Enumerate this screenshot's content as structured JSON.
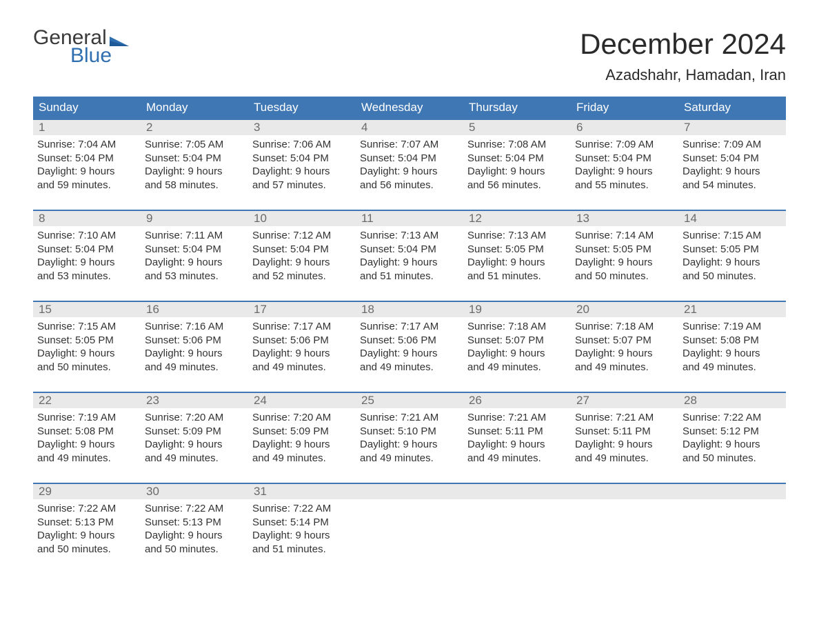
{
  "logo": {
    "part1": "General",
    "part2": "Blue"
  },
  "title": "December 2024",
  "location": "Azadshahr, Hamadan, Iran",
  "colors": {
    "header_bg": "#3f77b4",
    "header_text": "#ffffff",
    "band_bg": "#e9e9e9",
    "rule": "#3f77b4",
    "logo_blue": "#2f6fb0",
    "text": "#333333"
  },
  "day_headers": [
    "Sunday",
    "Monday",
    "Tuesday",
    "Wednesday",
    "Thursday",
    "Friday",
    "Saturday"
  ],
  "weeks": [
    [
      {
        "n": "1",
        "sr": "Sunrise: 7:04 AM",
        "ss": "Sunset: 5:04 PM",
        "d1": "Daylight: 9 hours",
        "d2": "and 59 minutes."
      },
      {
        "n": "2",
        "sr": "Sunrise: 7:05 AM",
        "ss": "Sunset: 5:04 PM",
        "d1": "Daylight: 9 hours",
        "d2": "and 58 minutes."
      },
      {
        "n": "3",
        "sr": "Sunrise: 7:06 AM",
        "ss": "Sunset: 5:04 PM",
        "d1": "Daylight: 9 hours",
        "d2": "and 57 minutes."
      },
      {
        "n": "4",
        "sr": "Sunrise: 7:07 AM",
        "ss": "Sunset: 5:04 PM",
        "d1": "Daylight: 9 hours",
        "d2": "and 56 minutes."
      },
      {
        "n": "5",
        "sr": "Sunrise: 7:08 AM",
        "ss": "Sunset: 5:04 PM",
        "d1": "Daylight: 9 hours",
        "d2": "and 56 minutes."
      },
      {
        "n": "6",
        "sr": "Sunrise: 7:09 AM",
        "ss": "Sunset: 5:04 PM",
        "d1": "Daylight: 9 hours",
        "d2": "and 55 minutes."
      },
      {
        "n": "7",
        "sr": "Sunrise: 7:09 AM",
        "ss": "Sunset: 5:04 PM",
        "d1": "Daylight: 9 hours",
        "d2": "and 54 minutes."
      }
    ],
    [
      {
        "n": "8",
        "sr": "Sunrise: 7:10 AM",
        "ss": "Sunset: 5:04 PM",
        "d1": "Daylight: 9 hours",
        "d2": "and 53 minutes."
      },
      {
        "n": "9",
        "sr": "Sunrise: 7:11 AM",
        "ss": "Sunset: 5:04 PM",
        "d1": "Daylight: 9 hours",
        "d2": "and 53 minutes."
      },
      {
        "n": "10",
        "sr": "Sunrise: 7:12 AM",
        "ss": "Sunset: 5:04 PM",
        "d1": "Daylight: 9 hours",
        "d2": "and 52 minutes."
      },
      {
        "n": "11",
        "sr": "Sunrise: 7:13 AM",
        "ss": "Sunset: 5:04 PM",
        "d1": "Daylight: 9 hours",
        "d2": "and 51 minutes."
      },
      {
        "n": "12",
        "sr": "Sunrise: 7:13 AM",
        "ss": "Sunset: 5:05 PM",
        "d1": "Daylight: 9 hours",
        "d2": "and 51 minutes."
      },
      {
        "n": "13",
        "sr": "Sunrise: 7:14 AM",
        "ss": "Sunset: 5:05 PM",
        "d1": "Daylight: 9 hours",
        "d2": "and 50 minutes."
      },
      {
        "n": "14",
        "sr": "Sunrise: 7:15 AM",
        "ss": "Sunset: 5:05 PM",
        "d1": "Daylight: 9 hours",
        "d2": "and 50 minutes."
      }
    ],
    [
      {
        "n": "15",
        "sr": "Sunrise: 7:15 AM",
        "ss": "Sunset: 5:05 PM",
        "d1": "Daylight: 9 hours",
        "d2": "and 50 minutes."
      },
      {
        "n": "16",
        "sr": "Sunrise: 7:16 AM",
        "ss": "Sunset: 5:06 PM",
        "d1": "Daylight: 9 hours",
        "d2": "and 49 minutes."
      },
      {
        "n": "17",
        "sr": "Sunrise: 7:17 AM",
        "ss": "Sunset: 5:06 PM",
        "d1": "Daylight: 9 hours",
        "d2": "and 49 minutes."
      },
      {
        "n": "18",
        "sr": "Sunrise: 7:17 AM",
        "ss": "Sunset: 5:06 PM",
        "d1": "Daylight: 9 hours",
        "d2": "and 49 minutes."
      },
      {
        "n": "19",
        "sr": "Sunrise: 7:18 AM",
        "ss": "Sunset: 5:07 PM",
        "d1": "Daylight: 9 hours",
        "d2": "and 49 minutes."
      },
      {
        "n": "20",
        "sr": "Sunrise: 7:18 AM",
        "ss": "Sunset: 5:07 PM",
        "d1": "Daylight: 9 hours",
        "d2": "and 49 minutes."
      },
      {
        "n": "21",
        "sr": "Sunrise: 7:19 AM",
        "ss": "Sunset: 5:08 PM",
        "d1": "Daylight: 9 hours",
        "d2": "and 49 minutes."
      }
    ],
    [
      {
        "n": "22",
        "sr": "Sunrise: 7:19 AM",
        "ss": "Sunset: 5:08 PM",
        "d1": "Daylight: 9 hours",
        "d2": "and 49 minutes."
      },
      {
        "n": "23",
        "sr": "Sunrise: 7:20 AM",
        "ss": "Sunset: 5:09 PM",
        "d1": "Daylight: 9 hours",
        "d2": "and 49 minutes."
      },
      {
        "n": "24",
        "sr": "Sunrise: 7:20 AM",
        "ss": "Sunset: 5:09 PM",
        "d1": "Daylight: 9 hours",
        "d2": "and 49 minutes."
      },
      {
        "n": "25",
        "sr": "Sunrise: 7:21 AM",
        "ss": "Sunset: 5:10 PM",
        "d1": "Daylight: 9 hours",
        "d2": "and 49 minutes."
      },
      {
        "n": "26",
        "sr": "Sunrise: 7:21 AM",
        "ss": "Sunset: 5:11 PM",
        "d1": "Daylight: 9 hours",
        "d2": "and 49 minutes."
      },
      {
        "n": "27",
        "sr": "Sunrise: 7:21 AM",
        "ss": "Sunset: 5:11 PM",
        "d1": "Daylight: 9 hours",
        "d2": "and 49 minutes."
      },
      {
        "n": "28",
        "sr": "Sunrise: 7:22 AM",
        "ss": "Sunset: 5:12 PM",
        "d1": "Daylight: 9 hours",
        "d2": "and 50 minutes."
      }
    ],
    [
      {
        "n": "29",
        "sr": "Sunrise: 7:22 AM",
        "ss": "Sunset: 5:13 PM",
        "d1": "Daylight: 9 hours",
        "d2": "and 50 minutes."
      },
      {
        "n": "30",
        "sr": "Sunrise: 7:22 AM",
        "ss": "Sunset: 5:13 PM",
        "d1": "Daylight: 9 hours",
        "d2": "and 50 minutes."
      },
      {
        "n": "31",
        "sr": "Sunrise: 7:22 AM",
        "ss": "Sunset: 5:14 PM",
        "d1": "Daylight: 9 hours",
        "d2": "and 51 minutes."
      },
      {
        "empty": true
      },
      {
        "empty": true
      },
      {
        "empty": true
      },
      {
        "empty": true
      }
    ]
  ]
}
